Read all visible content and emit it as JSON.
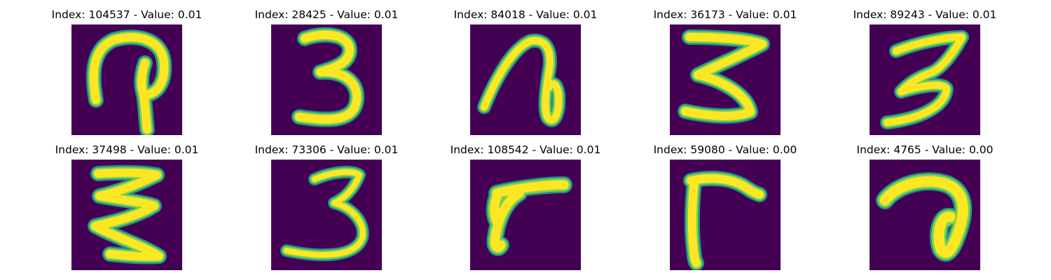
{
  "panels": [
    {
      "title": "Index: 104537 - Value: 0.01"
    },
    {
      "title": "Index: 28425 - Value: 0.01"
    },
    {
      "title": "Index: 84018 - Value: 0.01"
    },
    {
      "title": "Index: 36173 - Value: 0.01"
    },
    {
      "title": "Index: 89243 - Value: 0.01"
    },
    {
      "title": "Index: 37498 - Value: 0.01"
    },
    {
      "title": "Index: 73306 - Value: 0.01"
    },
    {
      "title": "Index: 108542 - Value: 0.01"
    },
    {
      "title": "Index: 59080 - Value: 0.00"
    },
    {
      "title": "Index: 4765 - Value: 0.00"
    }
  ],
  "colors": {
    "background": "#440154",
    "edge": "#21918c",
    "mid": "#7ad151",
    "stroke": "#fde725"
  }
}
